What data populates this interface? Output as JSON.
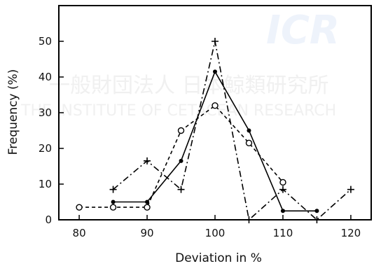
{
  "watermark": {
    "logo": "ICR",
    "japanese": "一般財団法人 日本鯨類研究所",
    "english": "THE INSTITUTE OF CETACEAN RESEARCH"
  },
  "chart_data": {
    "type": "line",
    "title": "",
    "xlabel": "Deviation in %",
    "ylabel": "Frequency (%)",
    "xlim": [
      77,
      123
    ],
    "ylim": [
      0,
      60
    ],
    "xticks": [
      80,
      90,
      100,
      110,
      120
    ],
    "yticks": [
      0,
      10,
      20,
      30,
      40,
      50
    ],
    "grid": false,
    "legend": "none",
    "series": [
      {
        "style": "solid",
        "marker": "filled-circle",
        "x": [
          85,
          90,
          95,
          100,
          105,
          110,
          115
        ],
        "y": [
          5,
          5,
          16.5,
          41.5,
          25,
          2.5,
          2.5
        ]
      },
      {
        "style": "dashed",
        "marker": "open-circle",
        "x": [
          80,
          85,
          90,
          95,
          100,
          105,
          110
        ],
        "y": [
          3.5,
          3.5,
          3.5,
          25,
          32,
          21.5,
          10.5
        ]
      },
      {
        "style": "dash-dot",
        "marker": "plus",
        "x": [
          85,
          90,
          95,
          100,
          105,
          110,
          115,
          120
        ],
        "y": [
          8.5,
          16.5,
          8.5,
          50,
          0,
          8.5,
          0,
          8.5
        ]
      }
    ]
  }
}
